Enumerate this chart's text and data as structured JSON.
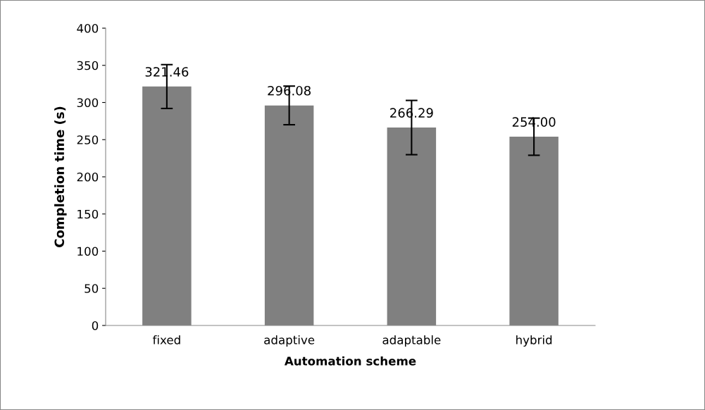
{
  "chart_data": {
    "type": "bar",
    "xlabel": "Automation scheme",
    "ylabel": "Completion time (s)",
    "categories": [
      "fixed",
      "adaptive",
      "adaptable",
      "hybrid"
    ],
    "values": [
      321.46,
      296.08,
      266.29,
      254.0
    ],
    "value_labels": [
      "321.46",
      "296.08",
      "266.29",
      "254.00"
    ],
    "errors": [
      29.5,
      26,
      36.5,
      25
    ],
    "color": "#808080",
    "ylim": [
      0,
      400
    ],
    "yticks": [
      0,
      50,
      100,
      150,
      200,
      250,
      300,
      350,
      400
    ],
    "grid": false,
    "legend": false
  }
}
